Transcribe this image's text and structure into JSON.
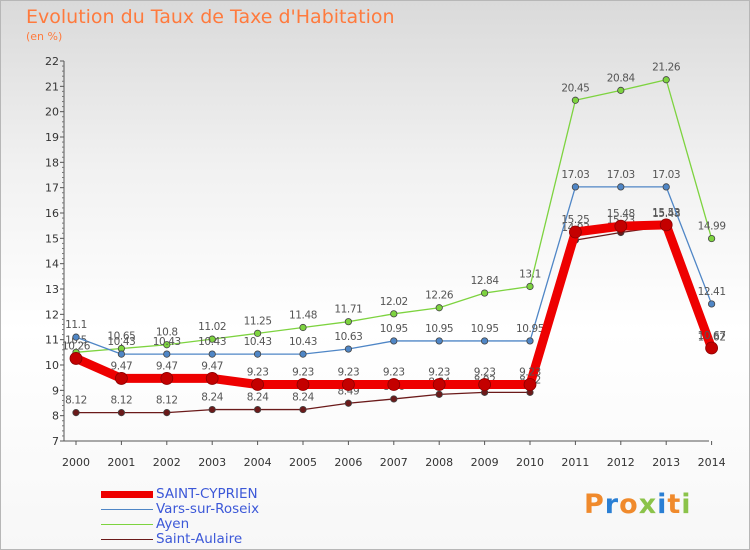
{
  "header": {
    "title": "Evolution du Taux de Taxe d'Habitation",
    "unit": "(en %)"
  },
  "logo": {
    "text": "Proxiti",
    "colors": [
      "#f08a2c",
      "#2a7fd4",
      "#f08a2c",
      "#8bc34a",
      "#2a7fd4",
      "#f08a2c",
      "#8bc34a"
    ]
  },
  "chart_data": {
    "type": "line",
    "title": "Evolution du Taux de Taxe d'Habitation",
    "ylabel": "(en %)",
    "xlabel": "",
    "x": [
      "2000",
      "2001",
      "2002",
      "2003",
      "2004",
      "2005",
      "2006",
      "2007",
      "2008",
      "2009",
      "2010",
      "2011",
      "2012",
      "2013",
      "2014"
    ],
    "ylim": [
      7,
      22
    ],
    "yticks": [
      "7",
      "8",
      "9",
      "10",
      "11",
      "12",
      "13",
      "14",
      "15",
      "16",
      "17",
      "18",
      "19",
      "20",
      "21",
      "22"
    ],
    "ytick_labels": [
      "7",
      "8",
      "9",
      "10",
      "11",
      "12",
      "13",
      "14",
      "15",
      "16",
      "17",
      "18",
      "19",
      "20",
      "21",
      "22"
    ],
    "grid": false,
    "legend_position": "bottom-left",
    "series": [
      {
        "name": "Saint-Aulaire",
        "color": "#6b1a1a",
        "thick": false,
        "values": [
          8.12,
          8.12,
          8.12,
          8.24,
          8.24,
          8.24,
          8.49,
          8.66,
          8.84,
          8.92,
          8.92,
          14.93,
          15.23,
          15.48,
          10.62
        ],
        "labels": [
          "8.12",
          "8.12",
          "8.12",
          "8.24",
          "8.24",
          "8.24",
          "8.49",
          "8.66",
          "8.84",
          "8.92",
          "8.92",
          "14.93",
          "15.23",
          "15.48",
          "10.62"
        ]
      },
      {
        "name": "Ayen",
        "color": "#7dd33f",
        "thick": false,
        "values": [
          10.5,
          10.65,
          10.8,
          11.02,
          11.25,
          11.48,
          11.71,
          12.02,
          12.26,
          12.84,
          13.1,
          20.45,
          20.84,
          21.26,
          14.99
        ],
        "labels": [
          "10.5",
          "10.65",
          "10.8",
          "11.02",
          "11.25",
          "11.48",
          "11.71",
          "12.02",
          "12.26",
          "12.84",
          "13.1",
          "20.45",
          "20.84",
          "21.26",
          "14.99"
        ]
      },
      {
        "name": "Vars-sur-Roseix",
        "color": "#4f86c6",
        "thick": false,
        "values": [
          11.1,
          10.43,
          10.43,
          10.43,
          10.43,
          10.43,
          10.63,
          10.95,
          10.95,
          10.95,
          10.95,
          17.03,
          17.03,
          17.03,
          12.41
        ],
        "labels": [
          "11.1",
          "10.43",
          "10.43",
          "10.43",
          "10.43",
          "10.43",
          "10.63",
          "10.95",
          "10.95",
          "10.95",
          "10.95",
          "17.03",
          "17.03",
          "17.03",
          "12.41"
        ]
      },
      {
        "name": "SAINT-CYPRIEN",
        "color": "#ee0000",
        "thick": true,
        "values": [
          10.26,
          9.47,
          9.47,
          9.47,
          9.23,
          9.23,
          9.23,
          9.23,
          9.23,
          9.23,
          9.23,
          15.25,
          15.48,
          15.53,
          10.67
        ],
        "labels": [
          "10.26",
          "9.47",
          "9.47",
          "9.47",
          "9.23",
          "9.23",
          "9.23",
          "9.23",
          "9.23",
          "9.23",
          "9.23",
          "15.25",
          "15.48",
          "15.53",
          "10.67"
        ]
      }
    ],
    "legend_order": [
      "SAINT-CYPRIEN",
      "Vars-sur-Roseix",
      "Ayen",
      "Saint-Aulaire"
    ]
  }
}
